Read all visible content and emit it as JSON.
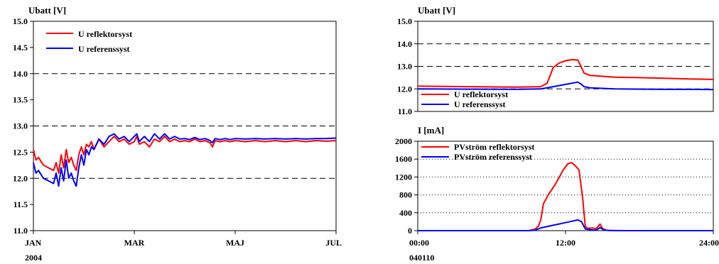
{
  "colors": {
    "red": "#ff0000",
    "blue": "#0000ff",
    "axis": "#000000"
  },
  "chart_data": [
    {
      "id": "left",
      "type": "line",
      "ylabel": "Ubatt [V]",
      "xlabel": "",
      "ylim": [
        11.0,
        15.0
      ],
      "yticks": [
        "15.0",
        "14.5",
        "14.0",
        "13.5",
        "13.0",
        "12.5",
        "12.0",
        "11.5",
        "11.0"
      ],
      "dashed_grid_y": [
        11.0,
        12.0,
        13.0,
        14.0
      ],
      "xlim": [
        0,
        6
      ],
      "xticks": [
        {
          "v": 0,
          "label": "JAN",
          "sub": "2004"
        },
        {
          "v": 2,
          "label": "MAR",
          "sub": ""
        },
        {
          "v": 4,
          "label": "MAJ",
          "sub": ""
        },
        {
          "v": 6,
          "label": "JUL",
          "sub": ""
        }
      ],
      "legend_position": "top-left",
      "series": [
        {
          "name": "U reflektorsyst",
          "color": "#ff0000",
          "x": [
            0,
            0.05,
            0.1,
            0.2,
            0.3,
            0.4,
            0.45,
            0.5,
            0.55,
            0.6,
            0.65,
            0.7,
            0.75,
            0.8,
            0.85,
            0.9,
            0.95,
            1.0,
            1.05,
            1.1,
            1.15,
            1.2,
            1.3,
            1.4,
            1.5,
            1.6,
            1.7,
            1.8,
            1.9,
            2.0,
            2.05,
            2.1,
            2.2,
            2.3,
            2.4,
            2.5,
            2.6,
            2.7,
            2.8,
            2.9,
            3.0,
            3.1,
            3.2,
            3.3,
            3.4,
            3.5,
            3.55,
            3.6,
            3.7,
            3.8,
            3.9,
            4.0,
            4.2,
            4.4,
            4.6,
            4.8,
            5.0,
            5.2,
            5.4,
            5.6,
            5.8,
            6.0
          ],
          "y": [
            12.55,
            12.35,
            12.4,
            12.25,
            12.2,
            12.15,
            12.3,
            12.1,
            12.45,
            12.2,
            12.55,
            12.3,
            12.4,
            12.25,
            12.15,
            12.45,
            12.6,
            12.45,
            12.65,
            12.6,
            12.7,
            12.55,
            12.75,
            12.6,
            12.7,
            12.8,
            12.7,
            12.75,
            12.65,
            12.7,
            12.8,
            12.65,
            12.7,
            12.6,
            12.75,
            12.7,
            12.8,
            12.7,
            12.75,
            12.7,
            12.72,
            12.7,
            12.75,
            12.7,
            12.72,
            12.68,
            12.6,
            12.72,
            12.7,
            12.72,
            12.7,
            12.72,
            12.7,
            12.72,
            12.7,
            12.72,
            12.7,
            12.72,
            12.7,
            12.72,
            12.71,
            12.72
          ]
        },
        {
          "name": "U referenssyst",
          "color": "#0000ff",
          "x": [
            0,
            0.05,
            0.1,
            0.2,
            0.3,
            0.4,
            0.45,
            0.5,
            0.55,
            0.6,
            0.65,
            0.7,
            0.75,
            0.8,
            0.85,
            0.9,
            0.95,
            1.0,
            1.05,
            1.1,
            1.15,
            1.2,
            1.3,
            1.4,
            1.5,
            1.6,
            1.7,
            1.8,
            1.9,
            2.0,
            2.05,
            2.1,
            2.2,
            2.3,
            2.4,
            2.5,
            2.6,
            2.7,
            2.8,
            2.9,
            3.0,
            3.1,
            3.2,
            3.3,
            3.4,
            3.5,
            3.55,
            3.6,
            3.7,
            3.8,
            3.9,
            4.0,
            4.2,
            4.4,
            4.6,
            4.8,
            5.0,
            5.2,
            5.4,
            5.6,
            5.8,
            6.0
          ],
          "y": [
            12.3,
            12.1,
            12.15,
            12.0,
            11.95,
            11.9,
            12.1,
            11.85,
            12.2,
            11.95,
            12.35,
            12.0,
            12.1,
            11.95,
            11.85,
            12.2,
            12.45,
            12.25,
            12.55,
            12.45,
            12.6,
            12.55,
            12.75,
            12.65,
            12.8,
            12.85,
            12.75,
            12.8,
            12.7,
            12.8,
            12.85,
            12.7,
            12.8,
            12.7,
            12.85,
            12.75,
            12.85,
            12.75,
            12.8,
            12.75,
            12.76,
            12.74,
            12.78,
            12.74,
            12.76,
            12.72,
            12.68,
            12.76,
            12.74,
            12.76,
            12.74,
            12.76,
            12.75,
            12.76,
            12.75,
            12.76,
            12.75,
            12.76,
            12.75,
            12.76,
            12.76,
            12.77
          ]
        }
      ]
    },
    {
      "id": "right-top",
      "type": "line",
      "ylabel": "Ubatt [V]",
      "xlabel": "",
      "ylim": [
        11.0,
        15.0
      ],
      "yticks": [
        "15.0",
        "14.0",
        "13.0",
        "12.0",
        "11.0"
      ],
      "dashed_grid_y": [
        12.0,
        13.0,
        14.0
      ],
      "xlim": [
        0,
        24
      ],
      "xticks": [],
      "legend_position": "bottom-left",
      "series": [
        {
          "name": "U reflektorsyst",
          "color": "#ff0000",
          "x": [
            0,
            4,
            8,
            10,
            10.5,
            11,
            11.5,
            12,
            12.5,
            13,
            13.3,
            13.5,
            14,
            16,
            18,
            20,
            22,
            24
          ],
          "y": [
            12.12,
            12.1,
            12.08,
            12.1,
            12.25,
            12.95,
            13.15,
            13.25,
            13.3,
            13.28,
            12.95,
            12.7,
            12.6,
            12.52,
            12.5,
            12.47,
            12.44,
            12.42
          ]
        },
        {
          "name": "U referenssyst",
          "color": "#0000ff",
          "x": [
            0,
            4,
            8,
            10,
            11,
            12,
            13,
            13.3,
            13.5,
            14,
            16,
            18,
            20,
            22,
            24
          ],
          "y": [
            12.0,
            11.99,
            11.98,
            12.0,
            12.1,
            12.2,
            12.3,
            12.2,
            12.1,
            12.05,
            12.0,
            11.99,
            11.98,
            11.98,
            11.97
          ]
        }
      ]
    },
    {
      "id": "right-bottom",
      "type": "line",
      "ylabel": "I [mA]",
      "xlabel": "",
      "ylim": [
        0,
        2000
      ],
      "yticks": [
        "2000",
        "1600",
        "1200",
        "800",
        "400",
        "0"
      ],
      "dotted_grid_y": [
        400,
        800,
        1200,
        1600,
        2000
      ],
      "xlim": [
        0,
        24
      ],
      "xticks": [
        {
          "v": 0,
          "label": "00:00",
          "sub": "040110"
        },
        {
          "v": 12,
          "label": "12:00",
          "sub": ""
        },
        {
          "v": 24,
          "label": "24:00",
          "sub": ""
        }
      ],
      "legend_position": "top-left",
      "series": [
        {
          "name": "PVström reflektorsyst",
          "color": "#ff0000",
          "x": [
            0,
            9,
            9.5,
            9.8,
            10,
            10.2,
            10.6,
            11.2,
            11.8,
            12.2,
            12.5,
            12.8,
            13.1,
            13.4,
            13.6,
            13.8,
            14.2,
            14.5,
            14.8,
            15.0,
            15.3,
            16,
            17,
            24
          ],
          "y": [
            0,
            0,
            30,
            100,
            250,
            600,
            800,
            1050,
            1350,
            1500,
            1520,
            1450,
            1350,
            700,
            100,
            50,
            60,
            40,
            150,
            50,
            10,
            0,
            0,
            0
          ]
        },
        {
          "name": "PVström referenssyst",
          "color": "#0000ff",
          "x": [
            0,
            9,
            9.5,
            10,
            11,
            12,
            12.5,
            13,
            13.3,
            13.6,
            14,
            14.5,
            14.8,
            15.1,
            15.5,
            17,
            24
          ],
          "y": [
            0,
            0,
            10,
            60,
            120,
            180,
            210,
            240,
            200,
            40,
            20,
            10,
            70,
            15,
            5,
            0,
            0
          ]
        }
      ]
    }
  ]
}
